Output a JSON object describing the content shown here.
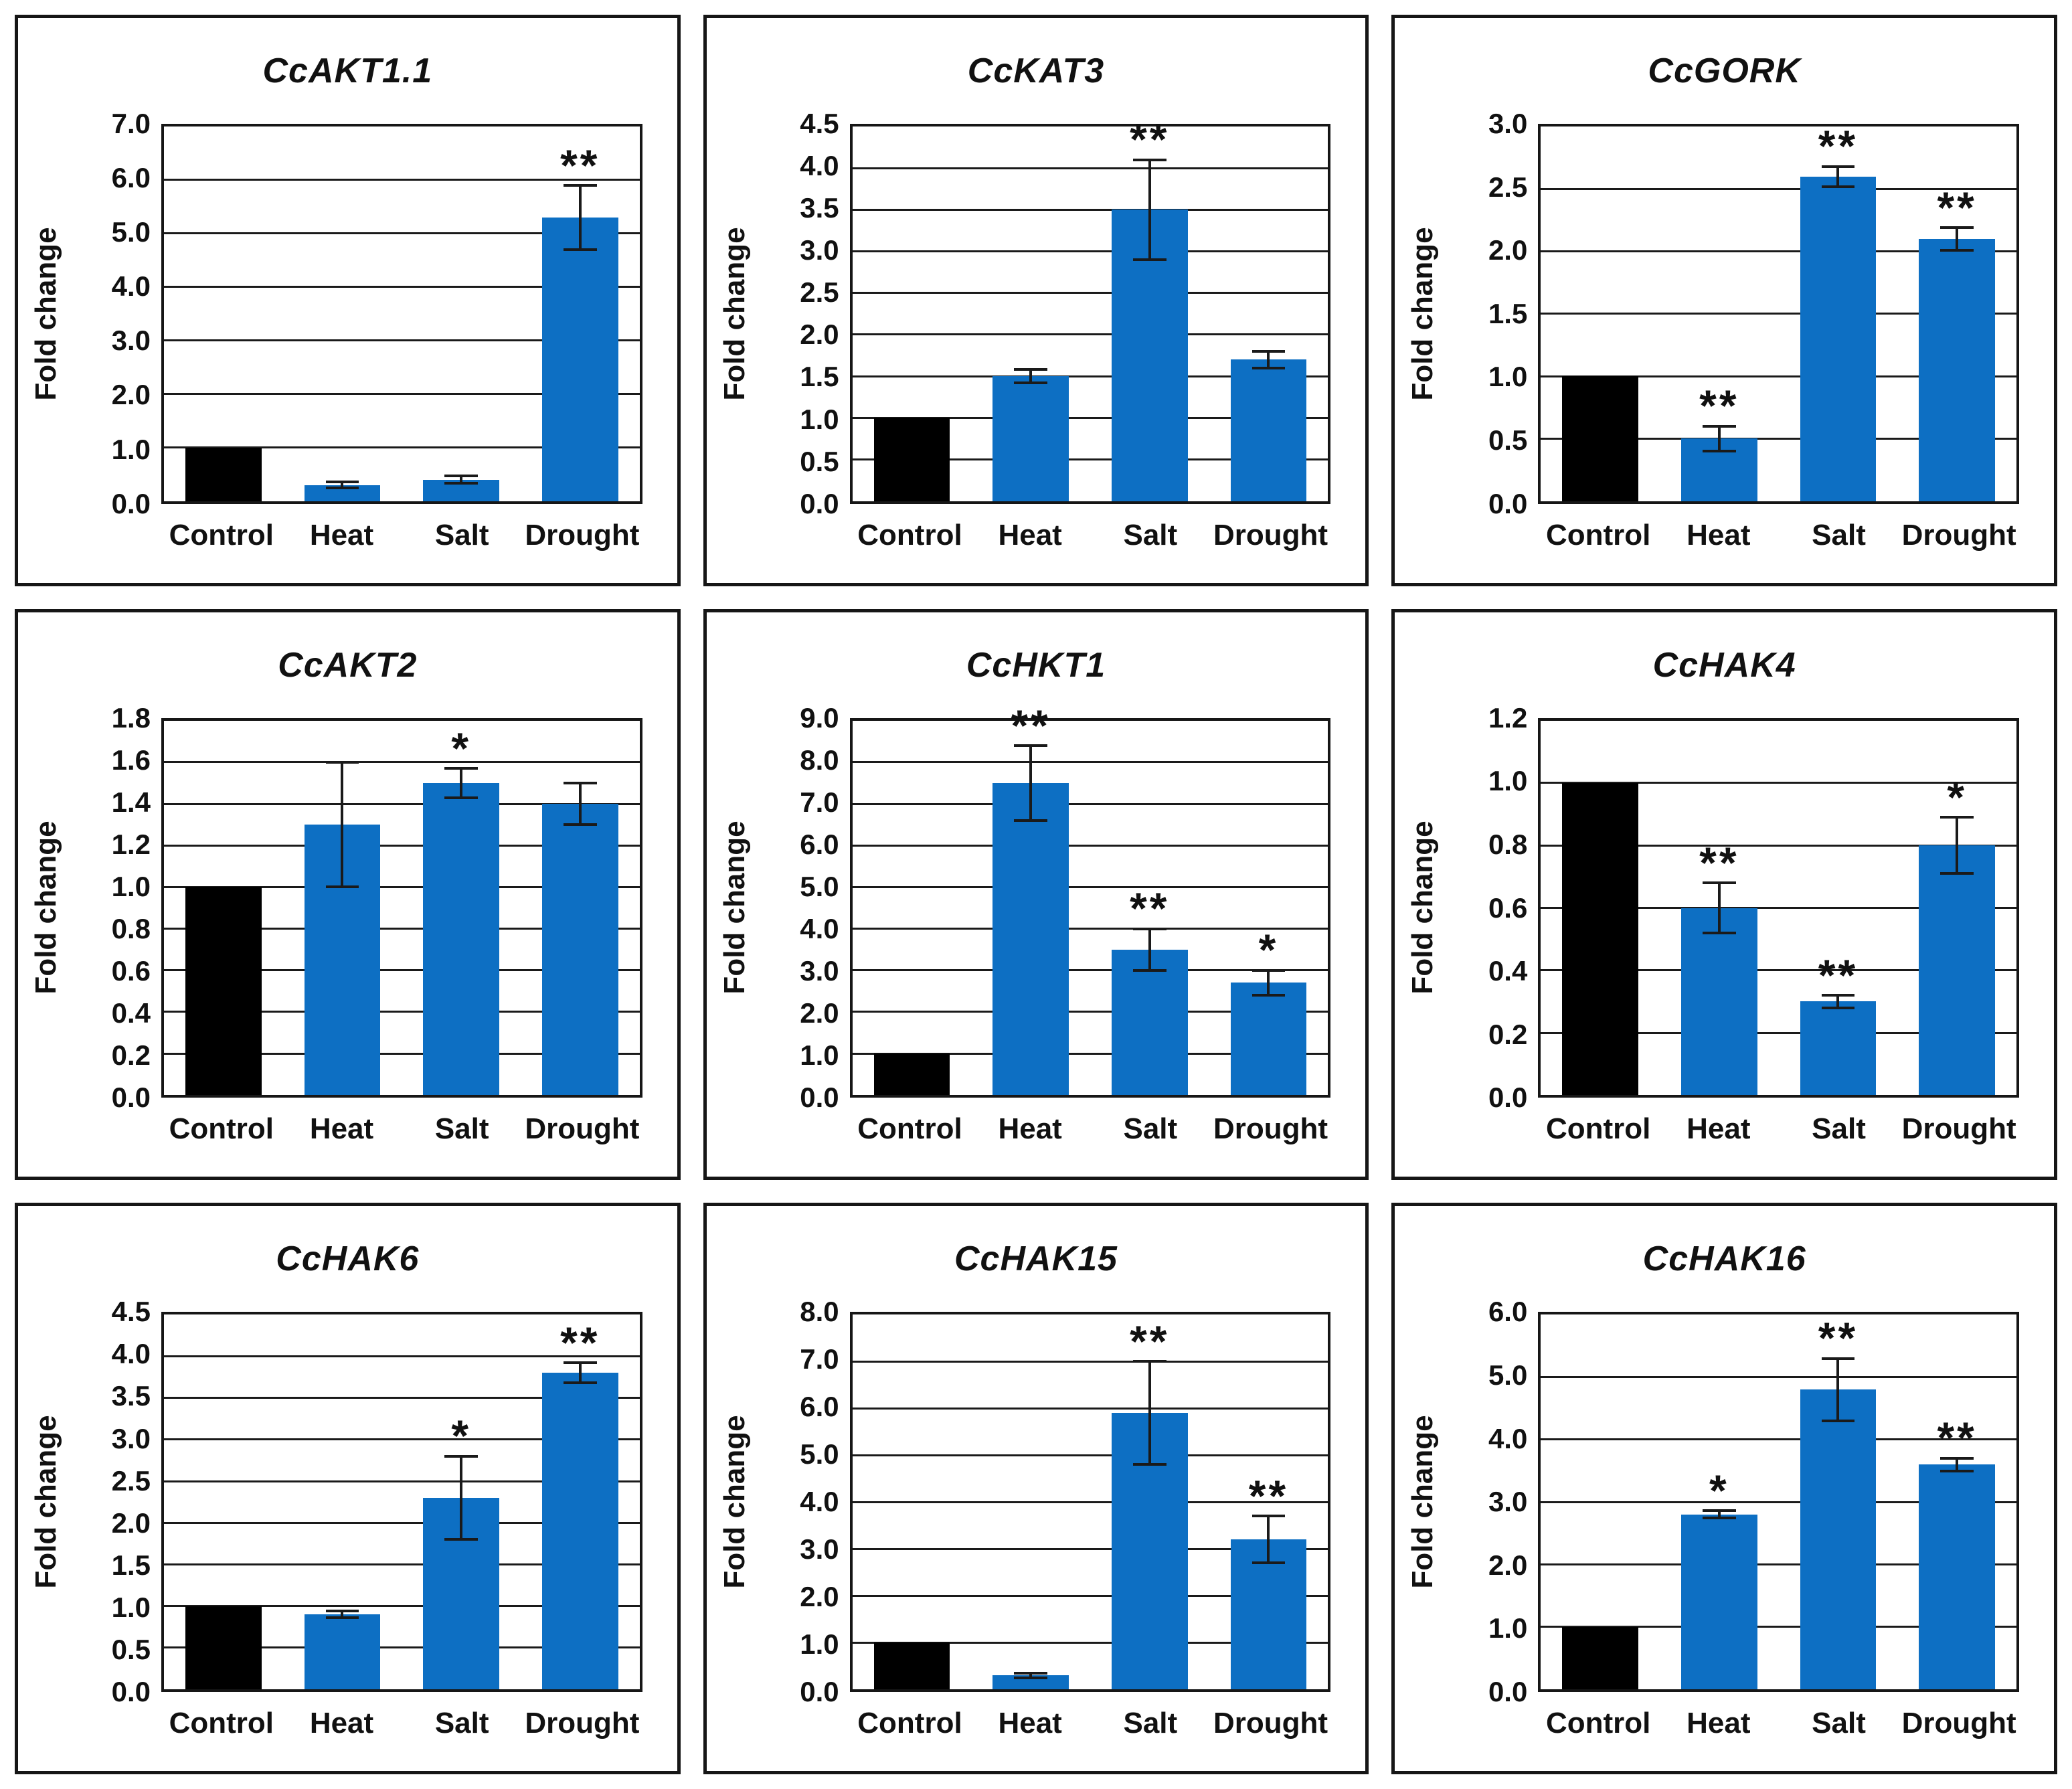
{
  "colors": {
    "control_bar": "#000000",
    "treatment_bar": "#0D6FC3",
    "line": "#1A1A1A"
  },
  "chart_data": [
    {
      "type": "bar",
      "title": "CcAKT1.1",
      "ylabel": "Fold change",
      "categories": [
        "Control",
        "Heat",
        "Salt",
        "Drought"
      ],
      "values": [
        1.0,
        0.3,
        0.4,
        5.3
      ],
      "errors": [
        0,
        0.06,
        0.07,
        0.6
      ],
      "significance": [
        "",
        "",
        "",
        "**"
      ],
      "ylim": [
        0,
        7.0
      ],
      "ytick_step": 1.0,
      "grid": true
    },
    {
      "type": "bar",
      "title": "CcKAT3",
      "ylabel": "Fold change",
      "categories": [
        "Control",
        "Heat",
        "Salt",
        "Drought"
      ],
      "values": [
        1.0,
        1.5,
        3.5,
        1.7
      ],
      "errors": [
        0,
        0.08,
        0.6,
        0.1
      ],
      "significance": [
        "",
        "",
        "**",
        ""
      ],
      "ylim": [
        0,
        4.5
      ],
      "ytick_step": 0.5,
      "grid": true
    },
    {
      "type": "bar",
      "title": "CcGORK",
      "ylabel": "Fold change",
      "categories": [
        "Control",
        "Heat",
        "Salt",
        "Drought"
      ],
      "values": [
        1.0,
        0.5,
        2.6,
        2.1
      ],
      "errors": [
        0,
        0.1,
        0.08,
        0.09
      ],
      "significance": [
        "",
        "**",
        "**",
        "**"
      ],
      "ylim": [
        0,
        3.0
      ],
      "ytick_step": 0.5,
      "grid": true
    },
    {
      "type": "bar",
      "title": "CcAKT2",
      "ylabel": "Fold change",
      "categories": [
        "Control",
        "Heat",
        "Salt",
        "Drought"
      ],
      "values": [
        1.0,
        1.3,
        1.5,
        1.4
      ],
      "errors": [
        0,
        0.3,
        0.07,
        0.1
      ],
      "significance": [
        "",
        "",
        "*",
        ""
      ],
      "ylim": [
        0,
        1.8
      ],
      "ytick_step": 0.2,
      "grid": true
    },
    {
      "type": "bar",
      "title": "CcHKT1",
      "ylabel": "Fold change",
      "categories": [
        "Control",
        "Heat",
        "Salt",
        "Drought"
      ],
      "values": [
        1.0,
        7.5,
        3.5,
        2.7
      ],
      "errors": [
        0,
        0.9,
        0.5,
        0.3
      ],
      "significance": [
        "",
        "**",
        "**",
        "*"
      ],
      "ylim": [
        0,
        9.0
      ],
      "ytick_step": 1.0,
      "grid": true
    },
    {
      "type": "bar",
      "title": "CcHAK4",
      "ylabel": "Fold change",
      "categories": [
        "Control",
        "Heat",
        "Salt",
        "Drought"
      ],
      "values": [
        1.0,
        0.6,
        0.3,
        0.8
      ],
      "errors": [
        0,
        0.08,
        0.02,
        0.09
      ],
      "significance": [
        "",
        "**",
        "**",
        "*"
      ],
      "ylim": [
        0,
        1.2
      ],
      "ytick_step": 0.2,
      "grid": true
    },
    {
      "type": "bar",
      "title": "CcHAK6",
      "ylabel": "Fold change",
      "categories": [
        "Control",
        "Heat",
        "Salt",
        "Drought"
      ],
      "values": [
        1.0,
        0.9,
        2.3,
        3.8
      ],
      "errors": [
        0,
        0.04,
        0.5,
        0.12
      ],
      "significance": [
        "",
        "",
        "*",
        "**"
      ],
      "ylim": [
        0,
        4.5
      ],
      "ytick_step": 0.5,
      "grid": true
    },
    {
      "type": "bar",
      "title": "CcHAK15",
      "ylabel": "Fold change",
      "categories": [
        "Control",
        "Heat",
        "Salt",
        "Drought"
      ],
      "values": [
        1.0,
        0.3,
        5.9,
        3.2
      ],
      "errors": [
        0,
        0.05,
        1.1,
        0.5
      ],
      "significance": [
        "",
        "",
        "**",
        "**"
      ],
      "ylim": [
        0,
        8.0
      ],
      "ytick_step": 1.0,
      "grid": true
    },
    {
      "type": "bar",
      "title": "CcHAK16",
      "ylabel": "Fold change",
      "categories": [
        "Control",
        "Heat",
        "Salt",
        "Drought"
      ],
      "values": [
        1.0,
        2.8,
        4.8,
        3.6
      ],
      "errors": [
        0,
        0.06,
        0.5,
        0.1
      ],
      "significance": [
        "",
        "*",
        "**",
        "**"
      ],
      "ylim": [
        0,
        6.0
      ],
      "ytick_step": 1.0,
      "grid": true
    }
  ]
}
